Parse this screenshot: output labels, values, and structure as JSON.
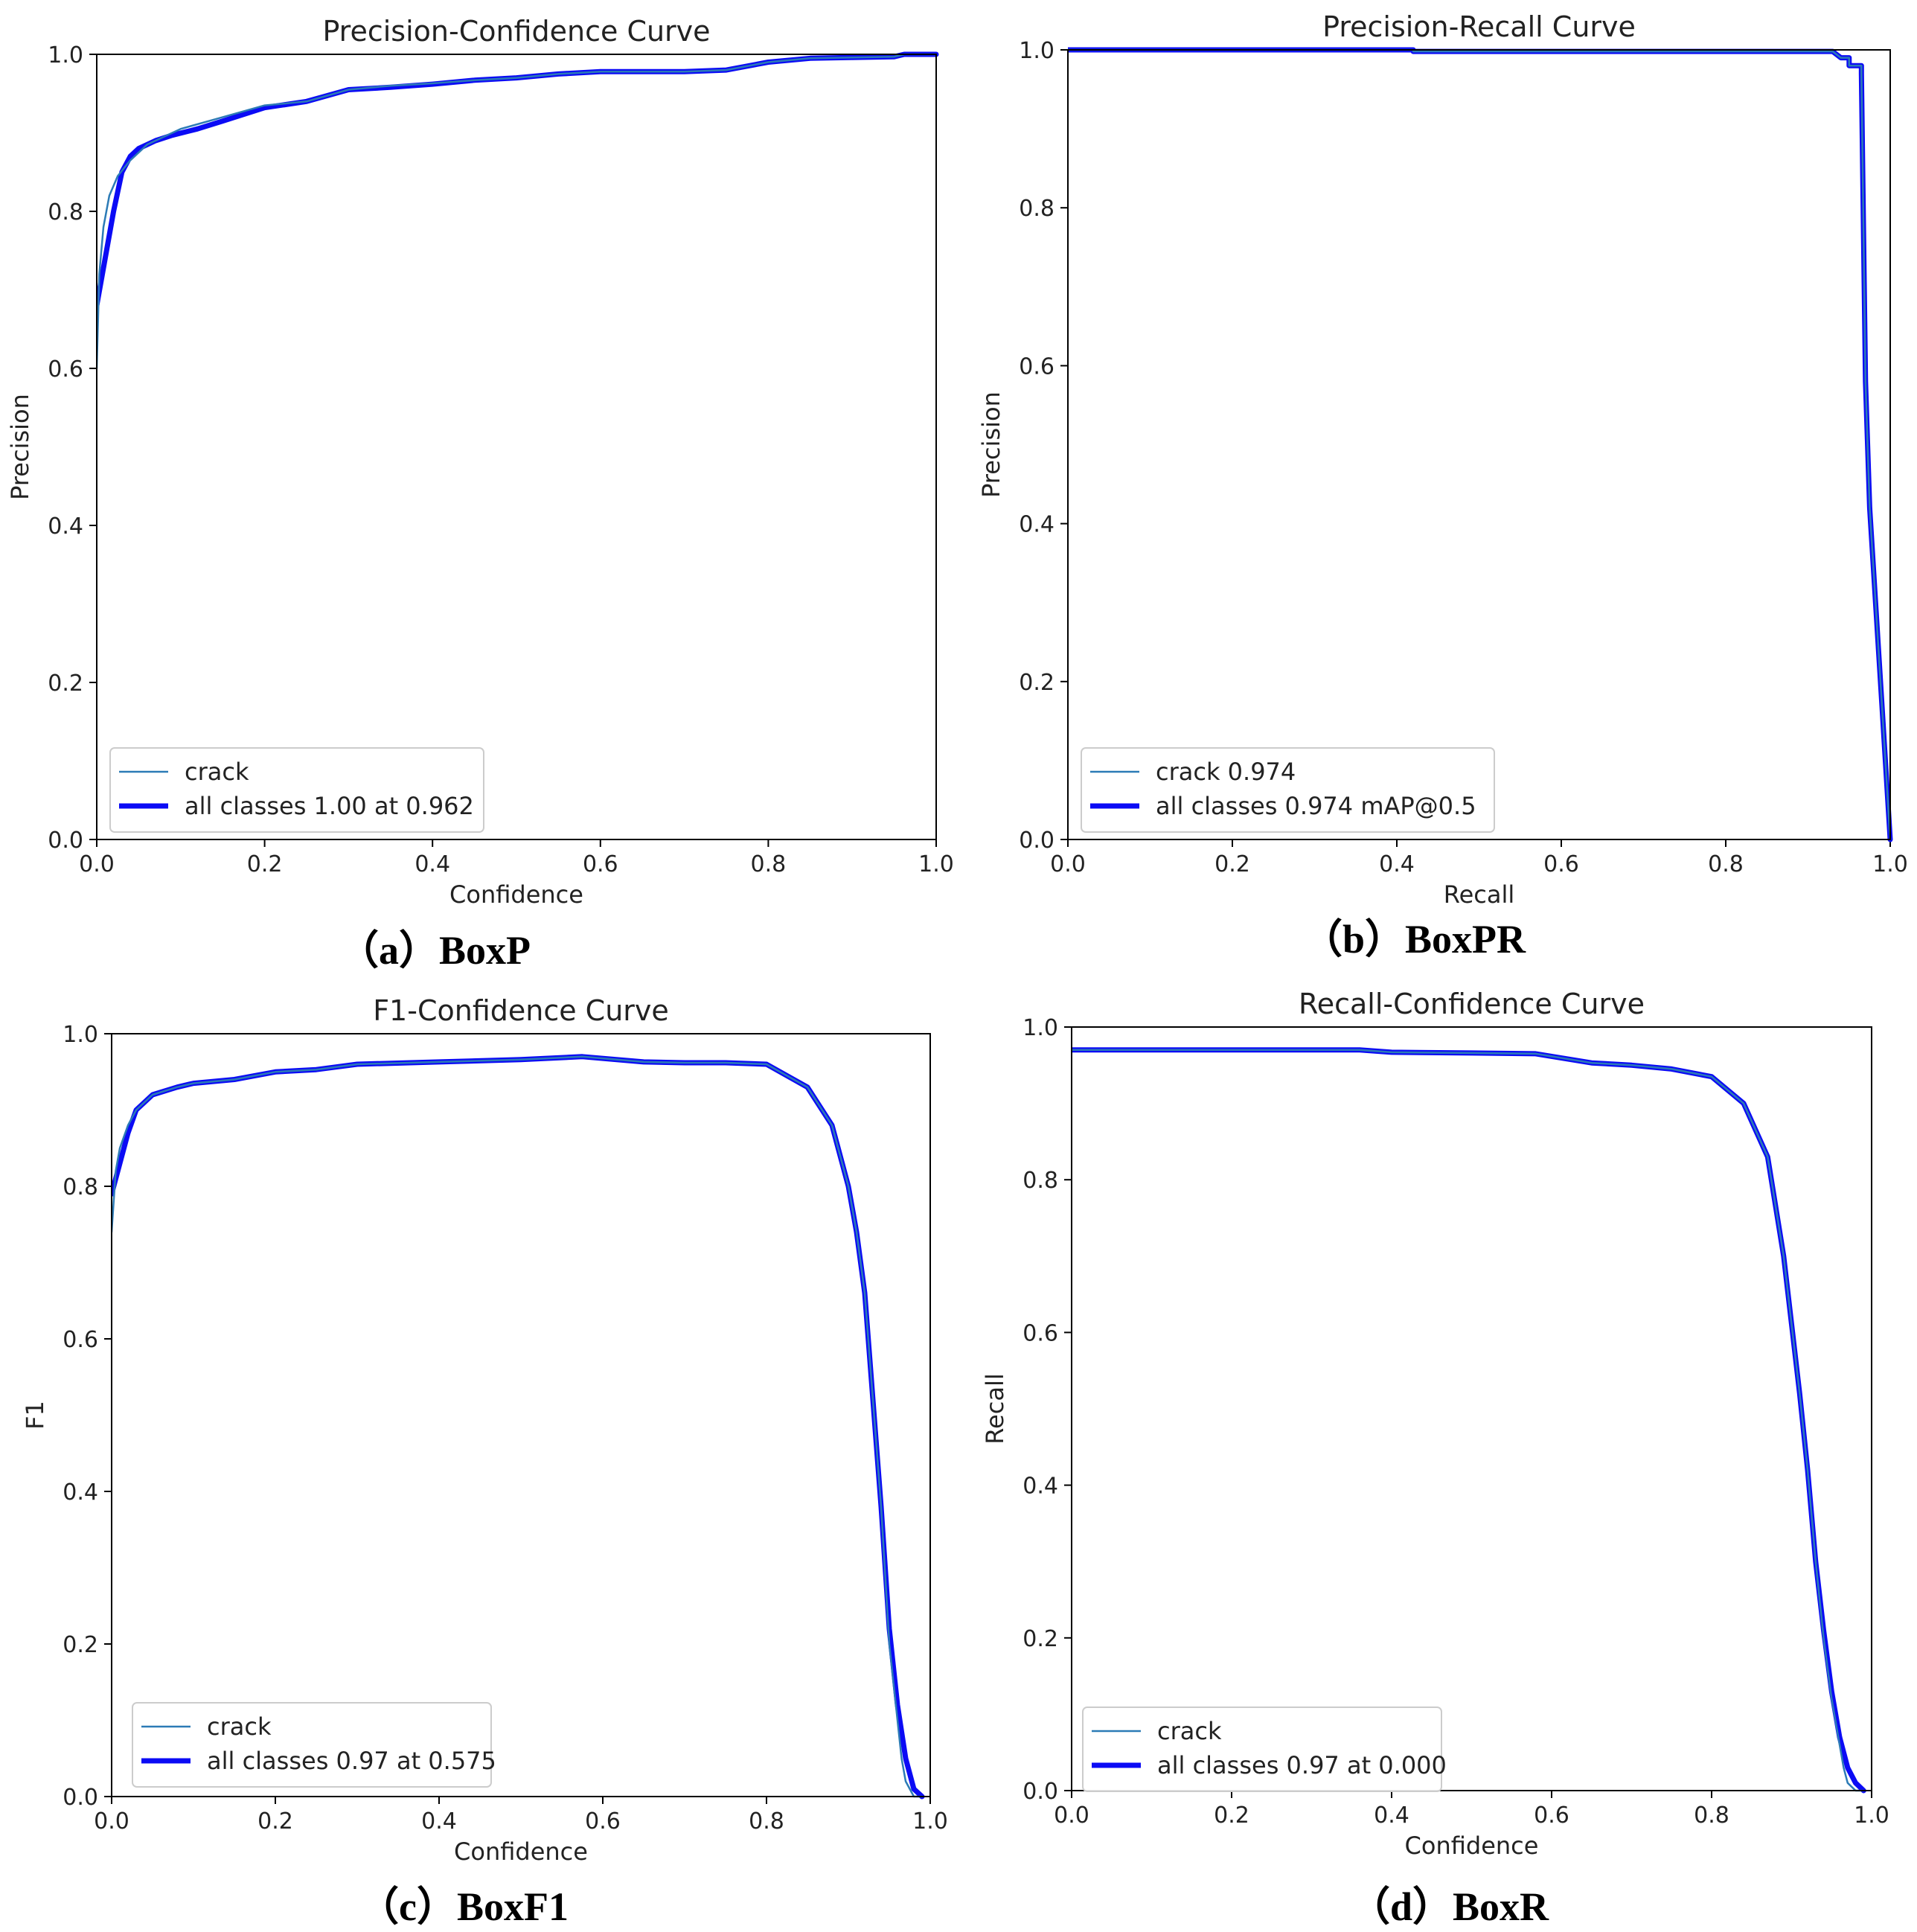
{
  "colors": {
    "crack": "#2c7bb6",
    "all_classes": "#0b0bf5",
    "axis": "#000000",
    "legend_border": "#cccccc"
  },
  "captions": [
    "（a）BoxP",
    "（b）BoxPR",
    "（c）BoxF1",
    "（d）BoxR"
  ],
  "chart_data": [
    {
      "type": "line",
      "title": "Precision-Confidence Curve",
      "xlabel": "Confidence",
      "ylabel": "Precision",
      "xlim": [
        0,
        1
      ],
      "ylim": [
        0,
        1
      ],
      "xticks": [
        "0.0",
        "0.2",
        "0.4",
        "0.6",
        "0.8",
        "1.0"
      ],
      "yticks": [
        "0.0",
        "0.2",
        "0.4",
        "0.6",
        "0.8",
        "1.0"
      ],
      "grid": false,
      "legend_position": "lower-left",
      "series": [
        {
          "name": "crack",
          "style": "thin",
          "x": [
            0.0,
            0.003,
            0.008,
            0.015,
            0.025,
            0.04,
            0.06,
            0.08,
            0.1,
            0.15,
            0.2,
            0.25,
            0.3,
            0.35,
            0.4,
            0.45,
            0.5,
            0.55,
            0.6,
            0.65,
            0.7,
            0.75,
            0.8,
            0.85,
            0.9,
            0.95,
            0.962,
            1.0
          ],
          "y": [
            0.6,
            0.72,
            0.78,
            0.82,
            0.845,
            0.865,
            0.885,
            0.895,
            0.905,
            0.92,
            0.935,
            0.94,
            0.955,
            0.96,
            0.963,
            0.967,
            0.97,
            0.975,
            0.978,
            0.978,
            0.978,
            0.98,
            0.99,
            0.995,
            0.996,
            0.997,
            1.0,
            1.0
          ]
        },
        {
          "name": "all classes 1.00 at 0.962",
          "style": "thick",
          "x": [
            0.0,
            0.01,
            0.02,
            0.03,
            0.04,
            0.05,
            0.07,
            0.09,
            0.12,
            0.15,
            0.2,
            0.25,
            0.3,
            0.35,
            0.4,
            0.45,
            0.5,
            0.55,
            0.6,
            0.65,
            0.7,
            0.75,
            0.8,
            0.85,
            0.9,
            0.95,
            0.962,
            1.0
          ],
          "y": [
            0.68,
            0.74,
            0.8,
            0.85,
            0.87,
            0.88,
            0.89,
            0.897,
            0.905,
            0.915,
            0.932,
            0.94,
            0.955,
            0.958,
            0.962,
            0.967,
            0.97,
            0.975,
            0.978,
            0.978,
            0.978,
            0.98,
            0.99,
            0.995,
            0.996,
            0.997,
            1.0,
            1.0
          ]
        }
      ]
    },
    {
      "type": "line",
      "title": "Precision-Recall Curve",
      "xlabel": "Recall",
      "ylabel": "Precision",
      "xlim": [
        0,
        1
      ],
      "ylim": [
        0,
        1
      ],
      "xticks": [
        "0.0",
        "0.2",
        "0.4",
        "0.6",
        "0.8",
        "1.0"
      ],
      "yticks": [
        "0.0",
        "0.2",
        "0.4",
        "0.6",
        "0.8",
        "1.0"
      ],
      "grid": false,
      "legend_position": "lower-left",
      "series": [
        {
          "name": "crack 0.974",
          "style": "thin",
          "x": [
            0.0,
            0.42,
            0.42,
            0.93,
            0.94,
            0.95,
            0.95,
            0.965,
            0.965,
            0.97,
            0.975,
            0.99,
            1.0
          ],
          "y": [
            1.0,
            1.0,
            0.998,
            0.998,
            0.99,
            0.99,
            0.98,
            0.98,
            0.97,
            0.58,
            0.42,
            0.17,
            0.0
          ]
        },
        {
          "name": "all classes 0.974 mAP@0.5",
          "style": "thick",
          "x": [
            0.0,
            0.42,
            0.42,
            0.93,
            0.94,
            0.95,
            0.95,
            0.965,
            0.965,
            0.97,
            0.975,
            0.99,
            1.0
          ],
          "y": [
            1.0,
            1.0,
            0.998,
            0.998,
            0.99,
            0.99,
            0.98,
            0.98,
            0.97,
            0.58,
            0.42,
            0.17,
            0.0
          ]
        }
      ]
    },
    {
      "type": "line",
      "title": "F1-Confidence Curve",
      "xlabel": "Confidence",
      "ylabel": "F1",
      "xlim": [
        0,
        1
      ],
      "ylim": [
        0,
        1
      ],
      "xticks": [
        "0.0",
        "0.2",
        "0.4",
        "0.6",
        "0.8",
        "1.0"
      ],
      "yticks": [
        "0.0",
        "0.2",
        "0.4",
        "0.6",
        "0.8",
        "1.0"
      ],
      "grid": false,
      "legend_position": "lower-left",
      "series": [
        {
          "name": "crack",
          "style": "thin",
          "x": [
            0.0,
            0.005,
            0.01,
            0.02,
            0.03,
            0.05,
            0.08,
            0.1,
            0.15,
            0.2,
            0.25,
            0.3,
            0.4,
            0.5,
            0.575,
            0.65,
            0.7,
            0.75,
            0.8,
            0.85,
            0.88,
            0.9,
            0.91,
            0.92,
            0.93,
            0.94,
            0.95,
            0.96,
            0.965,
            0.97,
            0.98,
            0.99
          ],
          "y": [
            0.74,
            0.82,
            0.85,
            0.88,
            0.9,
            0.92,
            0.93,
            0.935,
            0.94,
            0.95,
            0.953,
            0.96,
            0.963,
            0.966,
            0.97,
            0.963,
            0.962,
            0.962,
            0.96,
            0.93,
            0.88,
            0.8,
            0.74,
            0.66,
            0.52,
            0.38,
            0.2,
            0.1,
            0.05,
            0.02,
            0.0,
            0.0
          ]
        },
        {
          "name": "all classes 0.97 at 0.575",
          "style": "thick",
          "x": [
            0.0,
            0.01,
            0.02,
            0.03,
            0.05,
            0.08,
            0.1,
            0.15,
            0.2,
            0.25,
            0.3,
            0.4,
            0.5,
            0.575,
            0.65,
            0.7,
            0.75,
            0.8,
            0.85,
            0.88,
            0.9,
            0.91,
            0.92,
            0.93,
            0.94,
            0.95,
            0.96,
            0.97,
            0.98,
            0.99
          ],
          "y": [
            0.79,
            0.83,
            0.87,
            0.9,
            0.92,
            0.93,
            0.935,
            0.94,
            0.95,
            0.953,
            0.96,
            0.963,
            0.966,
            0.97,
            0.963,
            0.962,
            0.962,
            0.96,
            0.93,
            0.88,
            0.8,
            0.74,
            0.66,
            0.52,
            0.38,
            0.22,
            0.12,
            0.05,
            0.01,
            0.0
          ]
        }
      ]
    },
    {
      "type": "line",
      "title": "Recall-Confidence Curve",
      "xlabel": "Confidence",
      "ylabel": "Recall",
      "xlim": [
        0,
        1
      ],
      "ylim": [
        0,
        1
      ],
      "xticks": [
        "0.0",
        "0.2",
        "0.4",
        "0.6",
        "0.8",
        "1.0"
      ],
      "yticks": [
        "0.0",
        "0.2",
        "0.4",
        "0.6",
        "0.8",
        "1.0"
      ],
      "grid": false,
      "legend_position": "lower-left",
      "series": [
        {
          "name": "crack",
          "style": "thin",
          "x": [
            0.0,
            0.1,
            0.2,
            0.3,
            0.36,
            0.4,
            0.5,
            0.58,
            0.65,
            0.7,
            0.75,
            0.8,
            0.84,
            0.87,
            0.89,
            0.91,
            0.92,
            0.93,
            0.94,
            0.95,
            0.96,
            0.965,
            0.97,
            0.98,
            0.99
          ],
          "y": [
            0.97,
            0.97,
            0.97,
            0.97,
            0.97,
            0.967,
            0.966,
            0.965,
            0.953,
            0.95,
            0.945,
            0.935,
            0.9,
            0.83,
            0.7,
            0.52,
            0.42,
            0.3,
            0.2,
            0.12,
            0.06,
            0.03,
            0.01,
            0.0,
            0.0
          ]
        },
        {
          "name": "all classes 0.97 at 0.000",
          "style": "thick",
          "x": [
            0.0,
            0.1,
            0.2,
            0.3,
            0.36,
            0.4,
            0.5,
            0.58,
            0.65,
            0.7,
            0.75,
            0.8,
            0.84,
            0.87,
            0.89,
            0.91,
            0.92,
            0.93,
            0.94,
            0.95,
            0.96,
            0.97,
            0.98,
            0.99
          ],
          "y": [
            0.97,
            0.97,
            0.97,
            0.97,
            0.97,
            0.967,
            0.966,
            0.965,
            0.953,
            0.95,
            0.945,
            0.935,
            0.9,
            0.83,
            0.7,
            0.52,
            0.42,
            0.3,
            0.21,
            0.13,
            0.07,
            0.03,
            0.01,
            0.0
          ]
        }
      ]
    }
  ]
}
